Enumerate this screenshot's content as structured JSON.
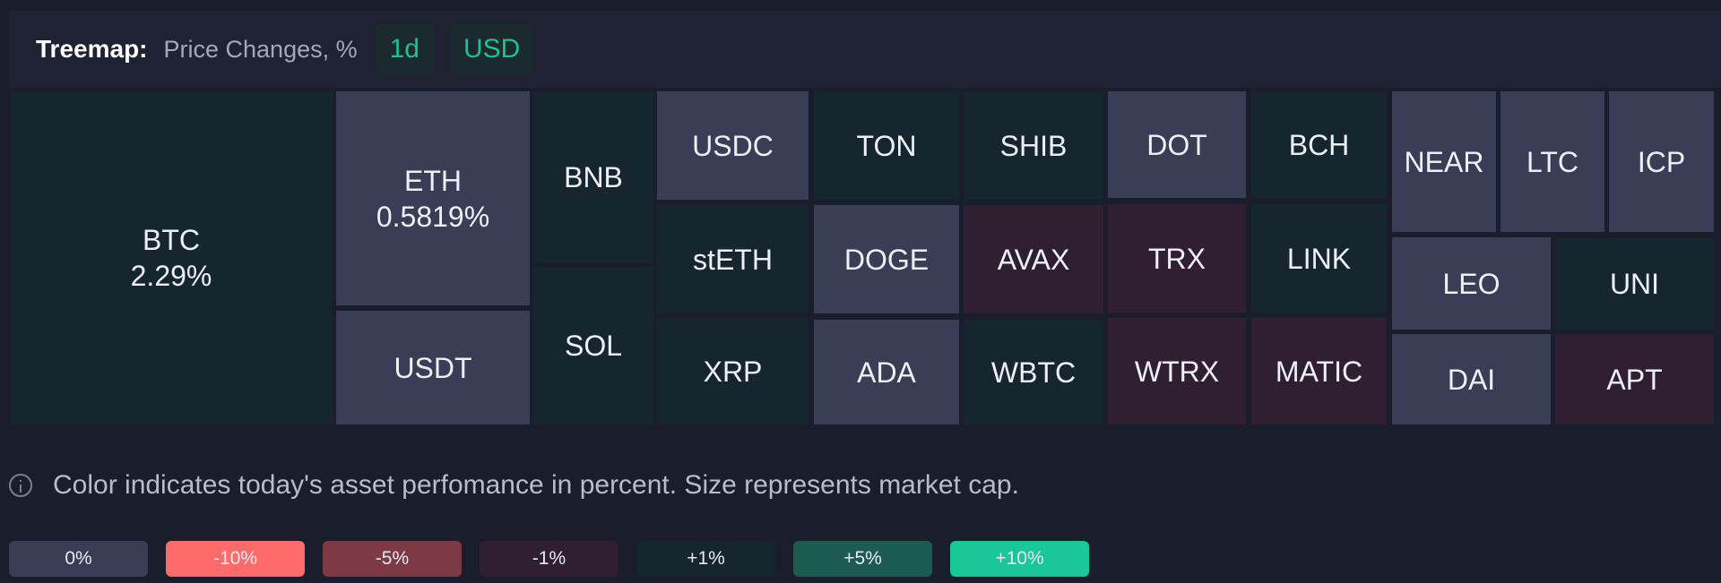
{
  "header": {
    "title": "Treemap:",
    "subtitle": "Price Changes, %",
    "period": "1d",
    "currency": "USD"
  },
  "treemap": {
    "tiles": [
      {
        "symbol": "BTC",
        "change": "2.29%",
        "color": "#16262f"
      },
      {
        "symbol": "ETH",
        "change": "0.5819%",
        "color": "#393d56"
      },
      {
        "symbol": "USDT",
        "change": "",
        "color": "#393d56"
      },
      {
        "symbol": "BNB",
        "change": "",
        "color": "#16262f"
      },
      {
        "symbol": "SOL",
        "change": "",
        "color": "#16262f"
      },
      {
        "symbol": "USDC",
        "change": "",
        "color": "#393d56"
      },
      {
        "symbol": "stETH",
        "change": "",
        "color": "#16262f"
      },
      {
        "symbol": "XRP",
        "change": "",
        "color": "#16262f"
      },
      {
        "symbol": "TON",
        "change": "",
        "color": "#16262f"
      },
      {
        "symbol": "DOGE",
        "change": "",
        "color": "#393d56"
      },
      {
        "symbol": "ADA",
        "change": "",
        "color": "#393d56"
      },
      {
        "symbol": "SHIB",
        "change": "",
        "color": "#16262f"
      },
      {
        "symbol": "AVAX",
        "change": "",
        "color": "#2f1f31"
      },
      {
        "symbol": "WBTC",
        "change": "",
        "color": "#16262f"
      },
      {
        "symbol": "DOT",
        "change": "",
        "color": "#393d56"
      },
      {
        "symbol": "TRX",
        "change": "",
        "color": "#2f1f31"
      },
      {
        "symbol": "WTRX",
        "change": "",
        "color": "#2f1f31"
      },
      {
        "symbol": "BCH",
        "change": "",
        "color": "#16262f"
      },
      {
        "symbol": "LINK",
        "change": "",
        "color": "#16262f"
      },
      {
        "symbol": "MATIC",
        "change": "",
        "color": "#2f1f31"
      },
      {
        "symbol": "NEAR",
        "change": "",
        "color": "#393d56"
      },
      {
        "symbol": "LTC",
        "change": "",
        "color": "#393d56"
      },
      {
        "symbol": "ICP",
        "change": "",
        "color": "#393d56"
      },
      {
        "symbol": "LEO",
        "change": "",
        "color": "#393d56"
      },
      {
        "symbol": "UNI",
        "change": "",
        "color": "#16262f"
      },
      {
        "symbol": "DAI",
        "change": "",
        "color": "#393d56"
      },
      {
        "symbol": "APT",
        "change": "",
        "color": "#2f1f31"
      }
    ]
  },
  "info": {
    "text": "Color indicates today's asset perfomance in percent. Size represents market cap."
  },
  "legend": [
    {
      "label": "0%",
      "color": "#393d56"
    },
    {
      "label": "-10%",
      "color": "#ff6b6b"
    },
    {
      "label": "-5%",
      "color": "#7d3a44"
    },
    {
      "label": "-1%",
      "color": "#2f1f31"
    },
    {
      "label": "+1%",
      "color": "#16262f"
    },
    {
      "label": "+5%",
      "color": "#1c5b4f"
    },
    {
      "label": "+10%",
      "color": "#19c797"
    }
  ]
}
